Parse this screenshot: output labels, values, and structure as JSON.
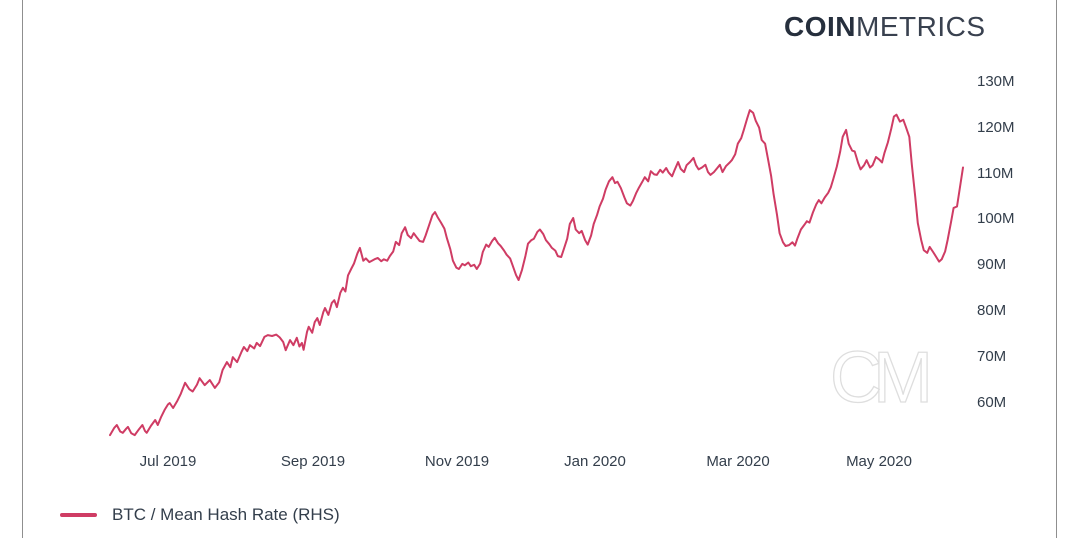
{
  "brand": {
    "logo_bold": "COIN",
    "logo_light": "METRICS"
  },
  "watermark": {
    "text": "CM"
  },
  "colors": {
    "line": "#cf3c64",
    "text": "#333e4b",
    "logo": "#262f3d",
    "border": "#8f8f8f",
    "watermark_stroke": "#dedede"
  },
  "legend": {
    "items": [
      {
        "label": "BTC / Mean Hash Rate (RHS)",
        "color": "#cf3c64"
      }
    ]
  },
  "chart_data": {
    "type": "line",
    "title": "",
    "xlabel": "",
    "ylabel": "Mean Hash Rate (RHS)",
    "grid": false,
    "legend_position": "bottom-left",
    "y_axis": {
      "side": "right",
      "unit": "M",
      "ylim_visible": [
        52,
        132
      ],
      "ticks": [
        {
          "label": "130M",
          "value": 130
        },
        {
          "label": "120M",
          "value": 120
        },
        {
          "label": "110M",
          "value": 110
        },
        {
          "label": "100M",
          "value": 100
        },
        {
          "label": "90M",
          "value": 90
        },
        {
          "label": "80M",
          "value": 80
        },
        {
          "label": "70M",
          "value": 70
        },
        {
          "label": "60M",
          "value": 60
        }
      ]
    },
    "x_axis": {
      "start_date_approx": "2019-06-05",
      "end_date_approx": "2020-06-06",
      "ticks": [
        {
          "label": "Jul 2019",
          "t": 0.068
        },
        {
          "label": "Sep 2019",
          "t": 0.238
        },
        {
          "label": "Nov 2019",
          "t": 0.407
        },
        {
          "label": "Jan 2020",
          "t": 0.569
        },
        {
          "label": "Mar 2020",
          "t": 0.736
        },
        {
          "label": "May 2020",
          "t": 0.902
        }
      ]
    },
    "series": [
      {
        "name": "BTC / Mean Hash Rate (RHS)",
        "color": "#cf3c64",
        "points": [
          [
            0.0,
            53.0
          ],
          [
            0.005,
            54.6
          ],
          [
            0.008,
            55.2
          ],
          [
            0.012,
            53.8
          ],
          [
            0.015,
            53.5
          ],
          [
            0.019,
            54.4
          ],
          [
            0.021,
            54.8
          ],
          [
            0.025,
            53.4
          ],
          [
            0.029,
            53.0
          ],
          [
            0.034,
            54.3
          ],
          [
            0.038,
            55.2
          ],
          [
            0.041,
            53.9
          ],
          [
            0.043,
            53.5
          ],
          [
            0.048,
            55.0
          ],
          [
            0.053,
            56.3
          ],
          [
            0.056,
            55.2
          ],
          [
            0.06,
            57.0
          ],
          [
            0.064,
            58.5
          ],
          [
            0.068,
            59.7
          ],
          [
            0.07,
            60.0
          ],
          [
            0.074,
            58.9
          ],
          [
            0.079,
            60.5
          ],
          [
            0.083,
            62.0
          ],
          [
            0.088,
            64.4
          ],
          [
            0.093,
            63.0
          ],
          [
            0.097,
            62.5
          ],
          [
            0.102,
            64.0
          ],
          [
            0.105,
            65.4
          ],
          [
            0.111,
            63.9
          ],
          [
            0.117,
            65.0
          ],
          [
            0.123,
            63.3
          ],
          [
            0.128,
            64.5
          ],
          [
            0.132,
            67.2
          ],
          [
            0.137,
            68.9
          ],
          [
            0.141,
            67.8
          ],
          [
            0.144,
            70.0
          ],
          [
            0.149,
            68.9
          ],
          [
            0.154,
            71.1
          ],
          [
            0.157,
            72.2
          ],
          [
            0.161,
            71.3
          ],
          [
            0.164,
            72.6
          ],
          [
            0.169,
            71.9
          ],
          [
            0.172,
            73.1
          ],
          [
            0.176,
            72.4
          ],
          [
            0.181,
            74.4
          ],
          [
            0.185,
            74.8
          ],
          [
            0.19,
            74.6
          ],
          [
            0.195,
            74.9
          ],
          [
            0.199,
            74.3
          ],
          [
            0.203,
            73.3
          ],
          [
            0.206,
            71.5
          ],
          [
            0.211,
            73.7
          ],
          [
            0.215,
            72.6
          ],
          [
            0.219,
            74.2
          ],
          [
            0.222,
            72.3
          ],
          [
            0.225,
            73.1
          ],
          [
            0.227,
            71.6
          ],
          [
            0.231,
            75.5
          ],
          [
            0.233,
            76.6
          ],
          [
            0.237,
            75.3
          ],
          [
            0.24,
            77.6
          ],
          [
            0.243,
            78.5
          ],
          [
            0.246,
            77.0
          ],
          [
            0.25,
            79.8
          ],
          [
            0.252,
            80.7
          ],
          [
            0.256,
            79.2
          ],
          [
            0.26,
            81.8
          ],
          [
            0.263,
            82.4
          ],
          [
            0.266,
            80.9
          ],
          [
            0.27,
            84.0
          ],
          [
            0.273,
            85.1
          ],
          [
            0.276,
            84.3
          ],
          [
            0.279,
            87.8
          ],
          [
            0.283,
            89.3
          ],
          [
            0.286,
            90.4
          ],
          [
            0.29,
            92.6
          ],
          [
            0.293,
            93.8
          ],
          [
            0.297,
            91.0
          ],
          [
            0.3,
            91.5
          ],
          [
            0.304,
            90.7
          ],
          [
            0.307,
            91.0
          ],
          [
            0.311,
            91.4
          ],
          [
            0.314,
            91.6
          ],
          [
            0.318,
            90.9
          ],
          [
            0.321,
            91.3
          ],
          [
            0.325,
            91.0
          ],
          [
            0.328,
            92.0
          ],
          [
            0.332,
            93.0
          ],
          [
            0.335,
            95.1
          ],
          [
            0.339,
            94.4
          ],
          [
            0.342,
            97.0
          ],
          [
            0.346,
            98.3
          ],
          [
            0.349,
            96.6
          ],
          [
            0.353,
            95.9
          ],
          [
            0.356,
            97.0
          ],
          [
            0.36,
            96.0
          ],
          [
            0.363,
            95.3
          ],
          [
            0.367,
            95.1
          ],
          [
            0.37,
            96.5
          ],
          [
            0.374,
            98.7
          ],
          [
            0.378,
            100.9
          ],
          [
            0.381,
            101.6
          ],
          [
            0.384,
            100.5
          ],
          [
            0.388,
            99.3
          ],
          [
            0.392,
            98.0
          ],
          [
            0.395,
            95.9
          ],
          [
            0.399,
            93.5
          ],
          [
            0.402,
            91.0
          ],
          [
            0.406,
            89.5
          ],
          [
            0.409,
            89.2
          ],
          [
            0.413,
            90.3
          ],
          [
            0.416,
            90.0
          ],
          [
            0.42,
            90.6
          ],
          [
            0.423,
            89.8
          ],
          [
            0.427,
            90.1
          ],
          [
            0.43,
            89.2
          ],
          [
            0.434,
            90.4
          ],
          [
            0.437,
            92.9
          ],
          [
            0.441,
            94.5
          ],
          [
            0.444,
            94.0
          ],
          [
            0.448,
            95.3
          ],
          [
            0.451,
            96.0
          ],
          [
            0.455,
            94.8
          ],
          [
            0.458,
            94.2
          ],
          [
            0.462,
            93.2
          ],
          [
            0.465,
            92.3
          ],
          [
            0.469,
            91.5
          ],
          [
            0.472,
            90.0
          ],
          [
            0.476,
            87.9
          ],
          [
            0.479,
            86.8
          ],
          [
            0.483,
            89.0
          ],
          [
            0.487,
            92.0
          ],
          [
            0.49,
            94.7
          ],
          [
            0.494,
            95.5
          ],
          [
            0.497,
            95.8
          ],
          [
            0.501,
            97.3
          ],
          [
            0.504,
            97.8
          ],
          [
            0.508,
            96.8
          ],
          [
            0.511,
            95.5
          ],
          [
            0.515,
            94.6
          ],
          [
            0.518,
            93.8
          ],
          [
            0.522,
            93.2
          ],
          [
            0.525,
            92.0
          ],
          [
            0.529,
            91.8
          ],
          [
            0.532,
            93.5
          ],
          [
            0.536,
            95.8
          ],
          [
            0.539,
            99.0
          ],
          [
            0.543,
            100.3
          ],
          [
            0.546,
            97.8
          ],
          [
            0.55,
            97.0
          ],
          [
            0.553,
            97.5
          ],
          [
            0.557,
            95.5
          ],
          [
            0.56,
            94.5
          ],
          [
            0.564,
            96.5
          ],
          [
            0.567,
            99.0
          ],
          [
            0.571,
            101.0
          ],
          [
            0.574,
            102.8
          ],
          [
            0.578,
            104.5
          ],
          [
            0.581,
            106.5
          ],
          [
            0.585,
            108.3
          ],
          [
            0.589,
            109.2
          ],
          [
            0.592,
            107.9
          ],
          [
            0.595,
            108.2
          ],
          [
            0.599,
            106.8
          ],
          [
            0.603,
            104.8
          ],
          [
            0.606,
            103.5
          ],
          [
            0.61,
            103.0
          ],
          [
            0.613,
            104.0
          ],
          [
            0.617,
            105.8
          ],
          [
            0.62,
            106.9
          ],
          [
            0.624,
            108.2
          ],
          [
            0.627,
            109.2
          ],
          [
            0.631,
            108.3
          ],
          [
            0.634,
            110.5
          ],
          [
            0.638,
            109.8
          ],
          [
            0.641,
            109.7
          ],
          [
            0.645,
            110.8
          ],
          [
            0.648,
            110.2
          ],
          [
            0.652,
            111.2
          ],
          [
            0.655,
            110.2
          ],
          [
            0.659,
            109.4
          ],
          [
            0.662,
            110.8
          ],
          [
            0.666,
            112.5
          ],
          [
            0.669,
            111.0
          ],
          [
            0.673,
            110.3
          ],
          [
            0.676,
            111.8
          ],
          [
            0.68,
            112.5
          ],
          [
            0.684,
            113.4
          ],
          [
            0.687,
            111.8
          ],
          [
            0.69,
            110.9
          ],
          [
            0.694,
            111.3
          ],
          [
            0.698,
            111.9
          ],
          [
            0.701,
            110.3
          ],
          [
            0.704,
            109.7
          ],
          [
            0.708,
            110.3
          ],
          [
            0.712,
            111.2
          ],
          [
            0.715,
            111.9
          ],
          [
            0.718,
            110.3
          ],
          [
            0.722,
            111.6
          ],
          [
            0.726,
            112.3
          ],
          [
            0.729,
            112.9
          ],
          [
            0.733,
            114.2
          ],
          [
            0.736,
            116.5
          ],
          [
            0.74,
            117.7
          ],
          [
            0.743,
            119.5
          ],
          [
            0.747,
            122.0
          ],
          [
            0.75,
            123.8
          ],
          [
            0.754,
            123.2
          ],
          [
            0.757,
            121.5
          ],
          [
            0.761,
            120.0
          ],
          [
            0.764,
            117.3
          ],
          [
            0.768,
            116.5
          ],
          [
            0.771,
            113.5
          ],
          [
            0.775,
            109.5
          ],
          [
            0.778,
            105.5
          ],
          [
            0.782,
            101.0
          ],
          [
            0.785,
            97.0
          ],
          [
            0.789,
            95.0
          ],
          [
            0.792,
            94.2
          ],
          [
            0.796,
            94.4
          ],
          [
            0.8,
            95.0
          ],
          [
            0.803,
            94.3
          ],
          [
            0.806,
            95.9
          ],
          [
            0.81,
            97.8
          ],
          [
            0.814,
            98.8
          ],
          [
            0.817,
            99.6
          ],
          [
            0.82,
            99.3
          ],
          [
            0.824,
            101.5
          ],
          [
            0.828,
            103.3
          ],
          [
            0.831,
            104.2
          ],
          [
            0.834,
            103.5
          ],
          [
            0.838,
            104.8
          ],
          [
            0.842,
            105.8
          ],
          [
            0.845,
            107.0
          ],
          [
            0.848,
            108.8
          ],
          [
            0.852,
            111.5
          ],
          [
            0.856,
            114.8
          ],
          [
            0.859,
            118.0
          ],
          [
            0.863,
            119.5
          ],
          [
            0.866,
            116.5
          ],
          [
            0.87,
            115.0
          ],
          [
            0.873,
            114.8
          ],
          [
            0.877,
            112.3
          ],
          [
            0.88,
            110.9
          ],
          [
            0.884,
            111.8
          ],
          [
            0.887,
            112.9
          ],
          [
            0.891,
            111.3
          ],
          [
            0.894,
            111.8
          ],
          [
            0.898,
            113.6
          ],
          [
            0.902,
            113.0
          ],
          [
            0.905,
            112.4
          ],
          [
            0.908,
            114.5
          ],
          [
            0.912,
            116.8
          ],
          [
            0.916,
            119.8
          ],
          [
            0.919,
            122.4
          ],
          [
            0.922,
            122.8
          ],
          [
            0.926,
            121.3
          ],
          [
            0.93,
            121.7
          ],
          [
            0.933,
            120.2
          ],
          [
            0.937,
            118.0
          ],
          [
            0.94,
            112.0
          ],
          [
            0.944,
            105.0
          ],
          [
            0.947,
            99.2
          ],
          [
            0.951,
            95.5
          ],
          [
            0.954,
            93.3
          ],
          [
            0.958,
            92.7
          ],
          [
            0.961,
            94.0
          ],
          [
            0.965,
            92.9
          ],
          [
            0.968,
            92.0
          ],
          [
            0.972,
            90.8
          ],
          [
            0.975,
            91.3
          ],
          [
            0.979,
            93.0
          ],
          [
            0.982,
            95.5
          ],
          [
            0.986,
            99.5
          ],
          [
            0.989,
            102.5
          ],
          [
            0.993,
            102.8
          ],
          [
            0.996,
            106.5
          ],
          [
            1.0,
            111.3
          ]
        ]
      }
    ]
  }
}
